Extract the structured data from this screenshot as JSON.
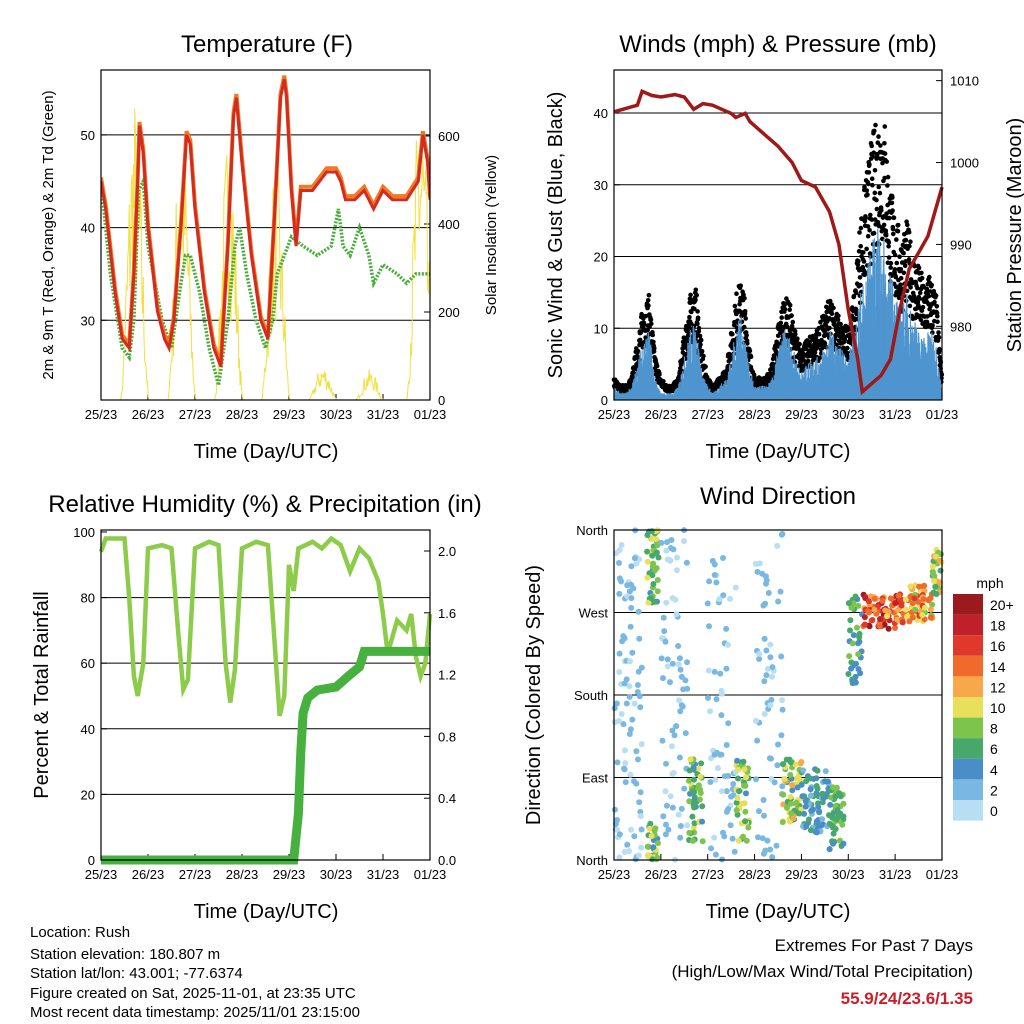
{
  "xticks": [
    "25/23",
    "26/23",
    "27/23",
    "28/23",
    "29/23",
    "30/23",
    "31/23",
    "01/23"
  ],
  "chart_data": [
    {
      "type": "line",
      "title": "Temperature (F)",
      "xlabel": "Time (Day/UTC)",
      "ylabel": "2m & 9m T (Red, Orange) & 2m Td (Green)",
      "ylabel_right": "Solar Insolation (Yellow)",
      "ylim": [
        21.4,
        57
      ],
      "yticks": [
        30,
        40,
        50
      ],
      "ylim_right": [
        0,
        750
      ],
      "yticks_right": [
        0,
        200,
        400,
        600
      ],
      "xlim": [
        0,
        7
      ],
      "colors": {
        "t2m": "#d42a20",
        "t9m": "#f07a22",
        "td": "#4aac3c",
        "solar": "#f2e040"
      },
      "t2m": [
        [
          0,
          45
        ],
        [
          0.1,
          42
        ],
        [
          0.3,
          33
        ],
        [
          0.45,
          28
        ],
        [
          0.6,
          27
        ],
        [
          0.7,
          35
        ],
        [
          0.78,
          45
        ],
        [
          0.82,
          51
        ],
        [
          0.9,
          48
        ],
        [
          1.0,
          40
        ],
        [
          1.2,
          31
        ],
        [
          1.35,
          28
        ],
        [
          1.45,
          27
        ],
        [
          1.55,
          30
        ],
        [
          1.7,
          40
        ],
        [
          1.82,
          50
        ],
        [
          1.9,
          49
        ],
        [
          2.0,
          42
        ],
        [
          2.2,
          33
        ],
        [
          2.4,
          27
        ],
        [
          2.55,
          25
        ],
        [
          2.7,
          38
        ],
        [
          2.82,
          52
        ],
        [
          2.88,
          54
        ],
        [
          3.0,
          47
        ],
        [
          3.2,
          37
        ],
        [
          3.4,
          30
        ],
        [
          3.55,
          28
        ],
        [
          3.7,
          42
        ],
        [
          3.82,
          54
        ],
        [
          3.9,
          56
        ],
        [
          3.95,
          54
        ],
        [
          4.05,
          44
        ],
        [
          4.15,
          38
        ],
        [
          4.25,
          44
        ],
        [
          4.5,
          44
        ],
        [
          4.8,
          46
        ],
        [
          5.0,
          46
        ],
        [
          5.1,
          45
        ],
        [
          5.2,
          43
        ],
        [
          5.4,
          43
        ],
        [
          5.6,
          44
        ],
        [
          5.8,
          42
        ],
        [
          6.0,
          44
        ],
        [
          6.2,
          43
        ],
        [
          6.5,
          43
        ],
        [
          6.75,
          45
        ],
        [
          6.85,
          50
        ],
        [
          6.95,
          47
        ],
        [
          7.0,
          43
        ]
      ],
      "td": [
        [
          0,
          45
        ],
        [
          0.2,
          35
        ],
        [
          0.45,
          27
        ],
        [
          0.6,
          26
        ],
        [
          0.7,
          30
        ],
        [
          0.8,
          44
        ],
        [
          0.9,
          45
        ],
        [
          1.0,
          38
        ],
        [
          1.3,
          30
        ],
        [
          1.5,
          27
        ],
        [
          1.7,
          34
        ],
        [
          1.8,
          37
        ],
        [
          1.9,
          37
        ],
        [
          2.1,
          33
        ],
        [
          2.3,
          27
        ],
        [
          2.5,
          23
        ],
        [
          2.7,
          30
        ],
        [
          2.85,
          38
        ],
        [
          2.95,
          40
        ],
        [
          3.1,
          35
        ],
        [
          3.3,
          30
        ],
        [
          3.5,
          27
        ],
        [
          3.65,
          30
        ],
        [
          3.75,
          35
        ],
        [
          3.9,
          37
        ],
        [
          4.05,
          39
        ],
        [
          4.3,
          38
        ],
        [
          4.6,
          37
        ],
        [
          4.9,
          38
        ],
        [
          5.05,
          42
        ],
        [
          5.15,
          38
        ],
        [
          5.3,
          37
        ],
        [
          5.5,
          40
        ],
        [
          5.7,
          37
        ],
        [
          5.8,
          34
        ],
        [
          6.0,
          36
        ],
        [
          6.3,
          35
        ],
        [
          6.5,
          34
        ],
        [
          6.7,
          35
        ],
        [
          7.0,
          35
        ]
      ],
      "solar_peaks": [
        [
          0.72,
          700
        ],
        [
          1.72,
          650
        ],
        [
          2.72,
          620
        ],
        [
          3.72,
          550
        ],
        [
          4.72,
          80
        ],
        [
          5.72,
          70
        ],
        [
          6.8,
          720
        ]
      ]
    },
    {
      "type": "scatter",
      "title": "Winds (mph) & Pressure (mb)",
      "xlabel": "Time (Day/UTC)",
      "ylabel": "Sonic Wind & Gust (Blue, Black)",
      "ylabel_right": "Station Pressure (Maroon)",
      "ylim": [
        0,
        46
      ],
      "yticks": [
        0,
        10,
        20,
        30,
        40
      ],
      "ylim_right": [
        971,
        1011.3
      ],
      "yticks_right": [
        980,
        990,
        1000,
        1010
      ],
      "xlim": [
        0,
        7
      ],
      "sample_step_days": 0.125,
      "colors": {
        "gust": "#000000",
        "wind": "#4f95cf",
        "pressure": "#a01818"
      },
      "gust": [
        3,
        2,
        2,
        3,
        8,
        13,
        14,
        6,
        3,
        2,
        2,
        3,
        9,
        14,
        15,
        7,
        3,
        2,
        3,
        4,
        9,
        15,
        16,
        8,
        3,
        3,
        3,
        5,
        10,
        14,
        13,
        9,
        7,
        8,
        9,
        10,
        12,
        14,
        12,
        10,
        10,
        14,
        24,
        30,
        35,
        38,
        40,
        30,
        25,
        22,
        24,
        20,
        18,
        16,
        17,
        14,
        3
      ],
      "wind": [
        2,
        1,
        1,
        2,
        5,
        9,
        10,
        3,
        1,
        1,
        1,
        2,
        6,
        10,
        11,
        4,
        2,
        1,
        2,
        3,
        6,
        11,
        12,
        5,
        2,
        2,
        2,
        3,
        7,
        10,
        9,
        6,
        4,
        5,
        6,
        6,
        8,
        10,
        8,
        7,
        6,
        10,
        15,
        18,
        22,
        24,
        23,
        18,
        16,
        13,
        15,
        12,
        10,
        9,
        10,
        8,
        1
      ],
      "pressure": [
        [
          0,
          1006.2
        ],
        [
          0.5,
          1007
        ],
        [
          0.6,
          1008.7
        ],
        [
          0.8,
          1008.2
        ],
        [
          1.0,
          1008
        ],
        [
          1.3,
          1008.3
        ],
        [
          1.5,
          1008
        ],
        [
          1.7,
          1006.5
        ],
        [
          1.9,
          1007.2
        ],
        [
          2.1,
          1007
        ],
        [
          2.3,
          1006.5
        ],
        [
          2.5,
          1006
        ],
        [
          2.6,
          1005.5
        ],
        [
          2.8,
          1006
        ],
        [
          2.9,
          1005
        ],
        [
          3.2,
          1003.5
        ],
        [
          3.5,
          1002
        ],
        [
          3.8,
          1000
        ],
        [
          4.0,
          997.8
        ],
        [
          4.3,
          997
        ],
        [
          4.6,
          994
        ],
        [
          4.8,
          990
        ],
        [
          5.0,
          982
        ],
        [
          5.2,
          976
        ],
        [
          5.3,
          972
        ],
        [
          5.5,
          973
        ],
        [
          5.7,
          974
        ],
        [
          5.9,
          976
        ],
        [
          6.1,
          982
        ],
        [
          6.3,
          987
        ],
        [
          6.5,
          989
        ],
        [
          6.7,
          991
        ],
        [
          6.9,
          995
        ],
        [
          7.0,
          997
        ]
      ]
    },
    {
      "type": "line",
      "title": "Relative Humidity (%) & Precipitation (in)",
      "xlabel": "Time (Day/UTC)",
      "ylabel": "Percent & Total Rainfall",
      "ylim": [
        0,
        100.6
      ],
      "yticks": [
        0,
        20,
        40,
        60,
        80,
        100
      ],
      "ylim_right": [
        0,
        2.136
      ],
      "yticks_right": [
        "0.0",
        "0.4",
        "0.8",
        "1.2",
        "1.6",
        "2.0"
      ],
      "xlim": [
        0,
        7
      ],
      "colors": {
        "rh": "#8ccc4a",
        "precip": "#46b13e"
      },
      "rh": [
        [
          0,
          94
        ],
        [
          0.1,
          98
        ],
        [
          0.5,
          98
        ],
        [
          0.6,
          80
        ],
        [
          0.7,
          56
        ],
        [
          0.78,
          50
        ],
        [
          0.9,
          60
        ],
        [
          1.0,
          95
        ],
        [
          1.3,
          96
        ],
        [
          1.5,
          95
        ],
        [
          1.65,
          68
        ],
        [
          1.75,
          52
        ],
        [
          1.85,
          55
        ],
        [
          2.0,
          95
        ],
        [
          2.3,
          97
        ],
        [
          2.5,
          96
        ],
        [
          2.65,
          60
        ],
        [
          2.75,
          48
        ],
        [
          2.85,
          58
        ],
        [
          3.0,
          95
        ],
        [
          3.3,
          97
        ],
        [
          3.55,
          96
        ],
        [
          3.7,
          65
        ],
        [
          3.8,
          44
        ],
        [
          3.9,
          50
        ],
        [
          4.0,
          90
        ],
        [
          4.1,
          82
        ],
        [
          4.2,
          95
        ],
        [
          4.5,
          97
        ],
        [
          4.7,
          95
        ],
        [
          4.9,
          98
        ],
        [
          5.1,
          96
        ],
        [
          5.3,
          88
        ],
        [
          5.5,
          95
        ],
        [
          5.7,
          92
        ],
        [
          5.9,
          85
        ],
        [
          6.0,
          75
        ],
        [
          6.1,
          63
        ],
        [
          6.3,
          73
        ],
        [
          6.5,
          70
        ],
        [
          6.6,
          75
        ],
        [
          6.7,
          62
        ],
        [
          6.8,
          56
        ],
        [
          6.9,
          60
        ],
        [
          7.0,
          75
        ]
      ],
      "precip": [
        [
          0,
          0
        ],
        [
          4.1,
          0
        ],
        [
          4.2,
          0.3
        ],
        [
          4.25,
          0.7
        ],
        [
          4.3,
          0.95
        ],
        [
          4.4,
          1.05
        ],
        [
          4.6,
          1.1
        ],
        [
          5.0,
          1.12
        ],
        [
          5.3,
          1.2
        ],
        [
          5.5,
          1.25
        ],
        [
          5.6,
          1.35
        ],
        [
          7.0,
          1.35
        ]
      ]
    },
    {
      "type": "scatter",
      "title": "Wind Direction",
      "xlabel": "Time (Day/UTC)",
      "ylabel": "Direction (Colored By Speed)",
      "ylim": [
        0,
        360
      ],
      "yticks": [
        "North",
        "East",
        "South",
        "West",
        "North"
      ],
      "xlim": [
        0,
        7
      ],
      "legend": {
        "title": "mph",
        "labels": [
          "20+",
          "18",
          "16",
          "14",
          "12",
          "10",
          "8",
          "6",
          "4",
          "2",
          "0"
        ],
        "colors": [
          "#9a1a1e",
          "#c0202a",
          "#e0382a",
          "#f06a2c",
          "#f8a848",
          "#e8e05a",
          "#7cc44c",
          "#46a86a",
          "#4a8ec8",
          "#7ab8e4",
          "#b8def4"
        ]
      },
      "clusters": [
        {
          "d": [
            0,
            0.6
          ],
          "dir": [
            0,
            360
          ],
          "spd": [
            0,
            3
          ],
          "n": 90
        },
        {
          "d": [
            0.7,
            0.95
          ],
          "dir": [
            280,
            360
          ],
          "spd": [
            4,
            10
          ],
          "n": 45
        },
        {
          "d": [
            0.7,
            0.95
          ],
          "dir": [
            0,
            40
          ],
          "spd": [
            4,
            10
          ],
          "n": 25
        },
        {
          "d": [
            1.0,
            1.6
          ],
          "dir": [
            0,
            360
          ],
          "spd": [
            0,
            3
          ],
          "n": 70
        },
        {
          "d": [
            1.6,
            1.9
          ],
          "dir": [
            20,
            110
          ],
          "spd": [
            4,
            10
          ],
          "n": 50
        },
        {
          "d": [
            2.0,
            2.6
          ],
          "dir": [
            0,
            330
          ],
          "spd": [
            0,
            3
          ],
          "n": 60
        },
        {
          "d": [
            2.6,
            2.9
          ],
          "dir": [
            20,
            110
          ],
          "spd": [
            4,
            11
          ],
          "n": 45
        },
        {
          "d": [
            3.0,
            3.6
          ],
          "dir": [
            0,
            360
          ],
          "spd": [
            0,
            3
          ],
          "n": 60
        },
        {
          "d": [
            3.6,
            4.0
          ],
          "dir": [
            40,
            110
          ],
          "spd": [
            4,
            12
          ],
          "n": 60
        },
        {
          "d": [
            4.0,
            4.6
          ],
          "dir": [
            30,
            100
          ],
          "spd": [
            2,
            6
          ],
          "n": 70
        },
        {
          "d": [
            4.6,
            4.9
          ],
          "dir": [
            10,
            80
          ],
          "spd": [
            4,
            9
          ],
          "n": 50
        },
        {
          "d": [
            5.0,
            5.3
          ],
          "dir": [
            190,
            290
          ],
          "spd": [
            3,
            8
          ],
          "n": 40
        },
        {
          "d": [
            5.3,
            6.2
          ],
          "dir": [
            250,
            290
          ],
          "spd": [
            10,
            20
          ],
          "n": 90
        },
        {
          "d": [
            6.2,
            6.8
          ],
          "dir": [
            260,
            300
          ],
          "spd": [
            8,
            16
          ],
          "n": 60
        },
        {
          "d": [
            6.8,
            7.0
          ],
          "dir": [
            290,
            340
          ],
          "spd": [
            6,
            12
          ],
          "n": 30
        }
      ]
    }
  ],
  "info": {
    "location": "Location: Rush",
    "elevation": "Station elevation: 180.807 m",
    "latlon": "Station lat/lon: 43.001; -77.6374",
    "created": "Figure created on Sat, 2025-11-01, at 23:35 UTC",
    "timestamp": "Most recent data timestamp: 2025/11/01 23:15:00"
  },
  "extremes": {
    "title": "Extremes For Past 7 Days",
    "subtitle": "(High/Low/Max Wind/Total Precipitation)",
    "values": "55.9/24/23.6/1.35"
  }
}
